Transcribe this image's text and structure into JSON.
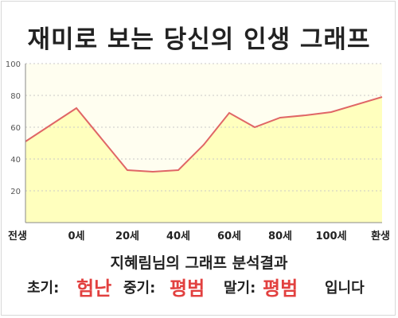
{
  "title": "재미로 보는 당신의 인생 그래프",
  "chart_data": {
    "type": "area",
    "title": "재미로 보는 당신의 인생 그래프",
    "xlabel": "",
    "ylabel": "",
    "x_tick_labels": [
      "전생",
      "0세",
      "20세",
      "40세",
      "60세",
      "80세",
      "100세",
      "환생"
    ],
    "y_ticks": [
      20,
      40,
      60,
      80,
      100
    ],
    "ylim": [
      0,
      100
    ],
    "grid": "horizontal dashed",
    "series": [
      {
        "x": [
          0,
          1,
          2,
          2.5,
          3,
          3.5,
          4,
          4.5,
          5,
          5.5,
          6,
          7
        ],
        "y": [
          51,
          72,
          33,
          32,
          33,
          49,
          69,
          60,
          66,
          67.5,
          69.5,
          79
        ]
      }
    ],
    "colors": {
      "line": "#e06666",
      "fill": "#ffffbe",
      "plot_bg": "#fffef0"
    }
  },
  "result": {
    "title": "지혜림님의 그래프 분석결과",
    "early_label": "초기:",
    "early_value": "험난",
    "mid_label": "중기:",
    "mid_value": "평범",
    "late_label": "말기:",
    "late_value": "평범",
    "suffix": "입니다"
  }
}
